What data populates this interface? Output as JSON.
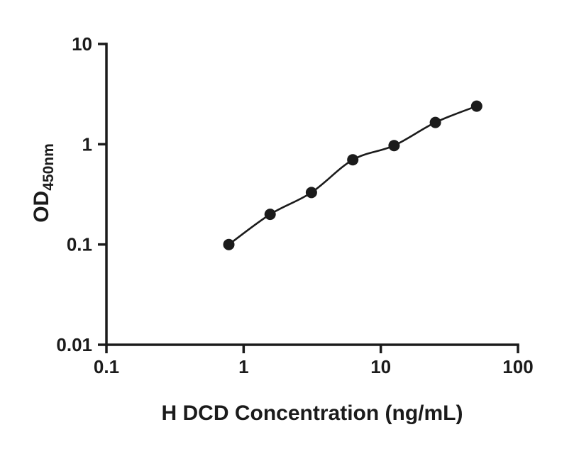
{
  "chart_data": {
    "type": "scatter",
    "title": "",
    "xlabel": "H DCD Concentration (ng/mL)",
    "ylabel": "OD",
    "ylabel_sub": "450nm",
    "x": [
      0.78,
      1.56,
      3.12,
      6.25,
      12.5,
      25,
      50
    ],
    "y": [
      0.1,
      0.2,
      0.33,
      0.7,
      0.97,
      1.65,
      2.4
    ],
    "xlim": [
      0.1,
      100
    ],
    "ylim": [
      0.01,
      10
    ],
    "xscale": "log",
    "yscale": "log",
    "x_tick_labels": [
      "0.1",
      "1",
      "10",
      "100"
    ],
    "x_tick_values": [
      0.1,
      1,
      10,
      100
    ],
    "y_tick_labels": [
      "10",
      "1",
      "0.1",
      "0.01"
    ],
    "y_tick_values": [
      10,
      1,
      0.1,
      0.01
    ],
    "grid": false,
    "legend": false,
    "series_name": "standard-curve",
    "marker_color": "#1b1b1b",
    "line_color": "#1b1b1b",
    "axis_color": "#1b1b1b",
    "background_color": "#ffffff"
  }
}
